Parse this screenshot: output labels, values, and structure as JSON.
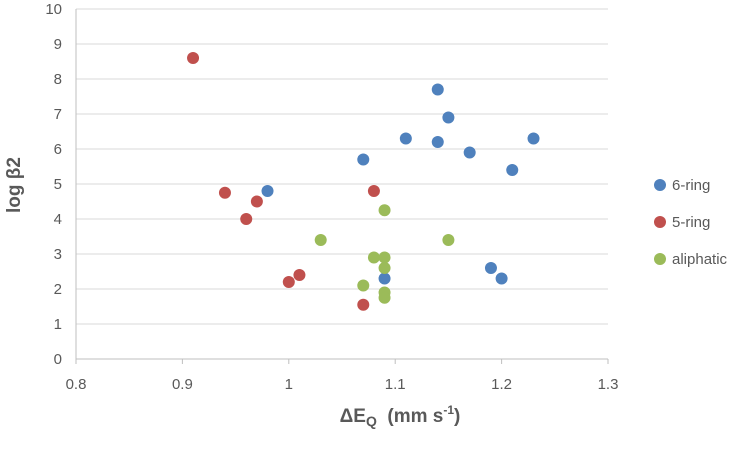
{
  "chart_data": {
    "type": "scatter",
    "title": "",
    "xlabel": {
      "main": "ΔE",
      "sub": "Q",
      "unit": "(mm s",
      "sup": "-1",
      "close": ")"
    },
    "ylabel": "log β2",
    "xlim": [
      0.8,
      1.3
    ],
    "ylim": [
      0,
      10
    ],
    "x_ticks": [
      "0.8",
      "0.9",
      "1",
      "1.1",
      "1.2",
      "1.3"
    ],
    "y_ticks": [
      "0",
      "1",
      "2",
      "3",
      "4",
      "5",
      "6",
      "7",
      "8",
      "9",
      "10"
    ],
    "grid": "horizontal",
    "legend_position": "right",
    "series": [
      {
        "name": "6-ring",
        "color": "#4F81BD",
        "points": [
          [
            0.98,
            4.8
          ],
          [
            1.07,
            5.7
          ],
          [
            1.09,
            2.3
          ],
          [
            1.11,
            6.3
          ],
          [
            1.14,
            7.7
          ],
          [
            1.14,
            6.2
          ],
          [
            1.15,
            6.9
          ],
          [
            1.17,
            5.9
          ],
          [
            1.19,
            2.6
          ],
          [
            1.2,
            2.3
          ],
          [
            1.21,
            5.4
          ],
          [
            1.23,
            6.3
          ]
        ]
      },
      {
        "name": "5-ring",
        "color": "#C0504D",
        "points": [
          [
            0.91,
            8.6
          ],
          [
            0.94,
            4.75
          ],
          [
            0.96,
            4.0
          ],
          [
            0.97,
            4.5
          ],
          [
            1.0,
            2.2
          ],
          [
            1.01,
            2.4
          ],
          [
            1.07,
            1.55
          ],
          [
            1.08,
            4.8
          ]
        ]
      },
      {
        "name": "aliphatic",
        "color": "#9BBB59",
        "points": [
          [
            1.03,
            3.4
          ],
          [
            1.07,
            2.1
          ],
          [
            1.08,
            2.9
          ],
          [
            1.09,
            4.25
          ],
          [
            1.09,
            2.9
          ],
          [
            1.09,
            2.6
          ],
          [
            1.09,
            1.9
          ],
          [
            1.09,
            1.75
          ],
          [
            1.15,
            3.4
          ]
        ]
      }
    ]
  }
}
